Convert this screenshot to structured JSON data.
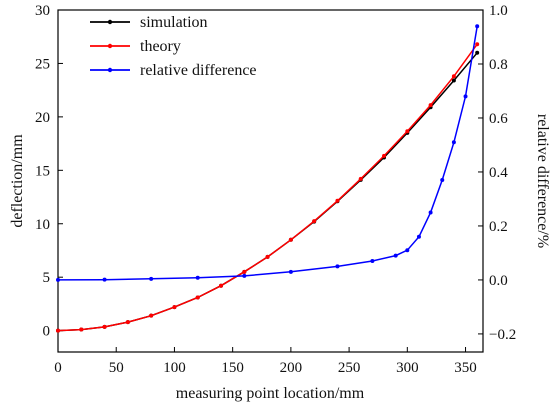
{
  "chart_data": {
    "type": "line",
    "xlabel": "measuring point location/mm",
    "ylabel": "deflection/mm",
    "y2label": "relative difference/%",
    "xlim": [
      0,
      365
    ],
    "ylim": [
      -2,
      30
    ],
    "y2lim": [
      -0.267,
      1.0
    ],
    "xticks": [
      "0",
      "50",
      "100",
      "150",
      "200",
      "250",
      "300",
      "350"
    ],
    "yticks": [
      "0",
      "5",
      "10",
      "15",
      "20",
      "25",
      "30"
    ],
    "y2ticks": [
      "−0.2",
      "0.0",
      "0.2",
      "0.4",
      "0.6",
      "0.8",
      "1.0"
    ],
    "legend_position": "top-left",
    "grid": false,
    "series": [
      {
        "name": "simulation",
        "axis": "left",
        "color": "#000000",
        "x": [
          0,
          20,
          40,
          60,
          80,
          100,
          120,
          140,
          160,
          180,
          200,
          220,
          240,
          260,
          280,
          300,
          320,
          340,
          360
        ],
        "y": [
          0,
          0.1,
          0.35,
          0.8,
          1.4,
          2.2,
          3.1,
          4.2,
          5.5,
          6.9,
          8.5,
          10.2,
          12.1,
          14.1,
          16.2,
          18.5,
          20.9,
          23.4,
          26.0
        ]
      },
      {
        "name": "theory",
        "axis": "left",
        "color": "#ff0000",
        "x": [
          0,
          20,
          40,
          60,
          80,
          100,
          120,
          140,
          160,
          180,
          200,
          220,
          240,
          260,
          280,
          300,
          320,
          340,
          360
        ],
        "y": [
          0,
          0.1,
          0.35,
          0.8,
          1.4,
          2.2,
          3.1,
          4.2,
          5.5,
          6.9,
          8.5,
          10.25,
          12.15,
          14.2,
          16.35,
          18.65,
          21.1,
          23.8,
          26.8
        ]
      },
      {
        "name": "relative difference",
        "axis": "right",
        "color": "#0000ff",
        "x": [
          0,
          40,
          80,
          120,
          160,
          200,
          240,
          270,
          290,
          300,
          310,
          320,
          330,
          340,
          350,
          360
        ],
        "y": [
          0.0,
          0.001,
          0.004,
          0.008,
          0.015,
          0.03,
          0.05,
          0.07,
          0.09,
          0.11,
          0.16,
          0.25,
          0.37,
          0.51,
          0.68,
          0.94
        ]
      }
    ]
  }
}
